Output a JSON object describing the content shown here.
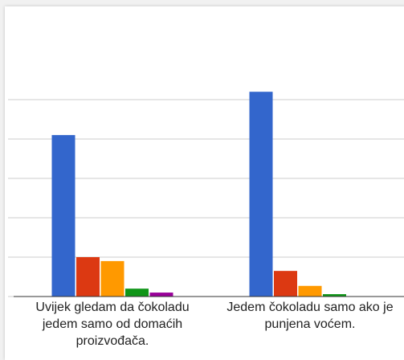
{
  "chart_data": {
    "type": "bar",
    "categories": [
      "Uvijek gledam da čokoladu jedem samo od domaćih proizvođača.",
      "Jedem čokoladu samo ako je punjena voćem."
    ],
    "series": [
      {
        "color": "#3366cc",
        "values": [
          4.1,
          5.2
        ]
      },
      {
        "color": "#dc3912",
        "values": [
          1.0,
          0.65
        ]
      },
      {
        "color": "#ff9900",
        "values": [
          0.9,
          0.27
        ]
      },
      {
        "color": "#109618",
        "values": [
          0.2,
          0.06
        ]
      },
      {
        "color": "#990099",
        "values": [
          0.1,
          0
        ]
      }
    ],
    "ylim": [
      0,
      6
    ],
    "yticks": [
      0,
      1,
      2,
      3,
      4,
      5
    ],
    "grid": true
  }
}
